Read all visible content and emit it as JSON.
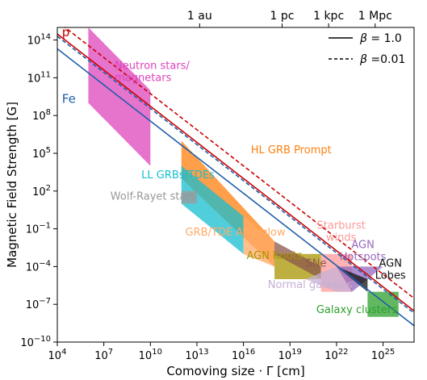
{
  "chart_data": {
    "type": "line",
    "xlabel": "Comoving size · Γ [cm]",
    "ylabel": "Magnetic Field Strength [G]",
    "x_scale": "log",
    "y_scale": "log",
    "xlim": [
      10000.0,
      1e+27
    ],
    "ylim": [
      1e-10,
      1000000000000000.0
    ],
    "x_ticks": [
      {
        "value": 10000.0,
        "mant": "10",
        "exp": "4"
      },
      {
        "value": 10000000.0,
        "mant": "10",
        "exp": "7"
      },
      {
        "value": 10000000000.0,
        "mant": "10",
        "exp": "10"
      },
      {
        "value": 10000000000000.0,
        "mant": "10",
        "exp": "13"
      },
      {
        "value": 1e+16,
        "mant": "10",
        "exp": "16"
      },
      {
        "value": 1e+19,
        "mant": "10",
        "exp": "19"
      },
      {
        "value": 1e+22,
        "mant": "10",
        "exp": "22"
      },
      {
        "value": 1e+25,
        "mant": "10",
        "exp": "25"
      }
    ],
    "y_ticks": [
      {
        "value": 1e-10,
        "mant": "10",
        "exp": "−10"
      },
      {
        "value": 1e-07,
        "mant": "10",
        "exp": "−7"
      },
      {
        "value": 0.0001,
        "mant": "10",
        "exp": "−4"
      },
      {
        "value": 0.1,
        "mant": "10",
        "exp": "−1"
      },
      {
        "value": 100.0,
        "mant": "10",
        "exp": "2"
      },
      {
        "value": 100000.0,
        "mant": "10",
        "exp": "5"
      },
      {
        "value": 100000000.0,
        "mant": "10",
        "exp": "8"
      },
      {
        "value": 100000000000.0,
        "mant": "10",
        "exp": "11"
      },
      {
        "value": 100000000000000.0,
        "mant": "10",
        "exp": "14"
      }
    ],
    "top_axis_ticks": [
      {
        "label": "1 au",
        "value": 15000000000000.0
      },
      {
        "label": "1 pc",
        "value": 3.1e+18
      },
      {
        "label": "1 kpc",
        "value": 3.1e+21
      },
      {
        "label": "1 Mpc",
        "value": 3.1e+24
      }
    ],
    "legend": {
      "placement": "top-right",
      "entries": [
        {
          "style": "solid",
          "label_prefix": "β",
          "label_value": " = 1.0"
        },
        {
          "style": "dashed",
          "label_prefix": "β",
          "label_value": " =0.01"
        }
      ]
    },
    "series": [
      {
        "name": "p",
        "color": "#cc0000",
        "beta": "1.0",
        "style": "solid",
        "x": [
          10000.0,
          1e+27
        ],
        "y": [
          300000000000000.0,
          3e-08
        ]
      },
      {
        "name": "p",
        "color": "#cc0000",
        "beta": "0.01",
        "style": "dashed",
        "x": [
          10000.0,
          1e+27
        ],
        "y": [
          3000000000000000.0,
          3e-07
        ]
      },
      {
        "name": "Fe",
        "color": "#1f5fa8",
        "beta": "1.0",
        "style": "solid",
        "x": [
          10000.0,
          1e+27
        ],
        "y": [
          20000000000000.0,
          2e-09
        ]
      },
      {
        "name": "Fe",
        "color": "#1f5fa8",
        "beta": "0.01",
        "style": "dashed",
        "x": [
          10000.0,
          1e+27
        ],
        "y": [
          200000000000000.0,
          2e-08
        ]
      }
    ],
    "line_labels": [
      {
        "text": "p",
        "color": "#cc0000",
        "x": 20000.0,
        "y": 200000000000000.0
      },
      {
        "text": "Fe",
        "color": "#1f5fa8",
        "x": 20000.0,
        "y": 1000000000.0
      }
    ],
    "regions": [
      {
        "label": "Neutron stars/ magnetars",
        "color": "#dd44bb",
        "shape": "band",
        "x": [
          1000000.0,
          10000000000.0
        ],
        "y_left": [
          1000000000000000.0,
          1000000000.0
        ],
        "y_right": [
          10000000000.0,
          10000.0
        ]
      },
      {
        "label": "HL GRB Prompt",
        "color": "#ff7f0e",
        "shape": "band",
        "x": [
          1000000000000.0,
          1e+18
        ],
        "y_left": [
          1000000.0,
          1000.0
        ],
        "y_right": [
          0.01,
          0.0001
        ]
      },
      {
        "label": "LL GRBs/TDEs",
        "color": "#17becf",
        "shape": "band",
        "x": [
          1000000000000.0,
          1e+16
        ],
        "y_left": [
          10000.0,
          10.0
        ],
        "y_right": [
          1.0,
          0.001
        ]
      },
      {
        "label": "GRB/TDE Afterglow",
        "color": "#ffaa66",
        "shape": "band",
        "x": [
          1e+16,
          1e+18
        ],
        "y_left": [
          1.0,
          0.001
        ],
        "y_right": [
          0.01,
          0.0001
        ]
      },
      {
        "label": "Wolf-Rayet stars",
        "color": "#999999",
        "shape": "rect",
        "x": [
          1000000000000.0,
          10000000000000.0
        ],
        "y": [
          10,
          100
        ]
      },
      {
        "label": "AGN Knots",
        "color": "#a89600",
        "shape": "rect",
        "x": [
          1e+18,
          1e+21
        ],
        "y": [
          1e-05,
          0.001
        ]
      },
      {
        "label": "SNe",
        "color": "#8c564b",
        "shape": "poly",
        "x": [
          1e+18,
          1e+18,
          1e+21,
          1e+21
        ],
        "y": [
          0.01,
          0.001,
          1e-05,
          0.0001
        ]
      },
      {
        "label": "Starburst winds",
        "color": "#ff9999",
        "shape": "rect",
        "x": [
          1e+21,
          1e+23
        ],
        "y": [
          1e-06,
          0.001
        ]
      },
      {
        "label": "Normal galaxies",
        "color": "#c5b0d5",
        "shape": "poly",
        "x": [
          1e+20,
          1e+22,
          1e+23,
          1e+22
        ],
        "y": [
          1e-05,
          1e-06,
          1e-06,
          0.0001
        ]
      },
      {
        "label": "AGN Hotspots",
        "color": "#9467bd",
        "shape": "poly",
        "x": [
          1e+22,
          1e+25,
          1e+23
        ],
        "y": [
          0.0001,
          0.0001,
          1e-06
        ]
      },
      {
        "label": "AGN Lobes",
        "color": "#111111",
        "shape": "poly",
        "x": [
          1e+22,
          1e+24,
          1e+24
        ],
        "y": [
          0.0001,
          1e-05,
          1e-06
        ]
      },
      {
        "label": "Galaxy clusters",
        "color": "#2ca02c",
        "shape": "rect",
        "x": [
          1e+24,
          1e+26
        ],
        "y": [
          1e-08,
          1e-06
        ]
      }
    ]
  }
}
